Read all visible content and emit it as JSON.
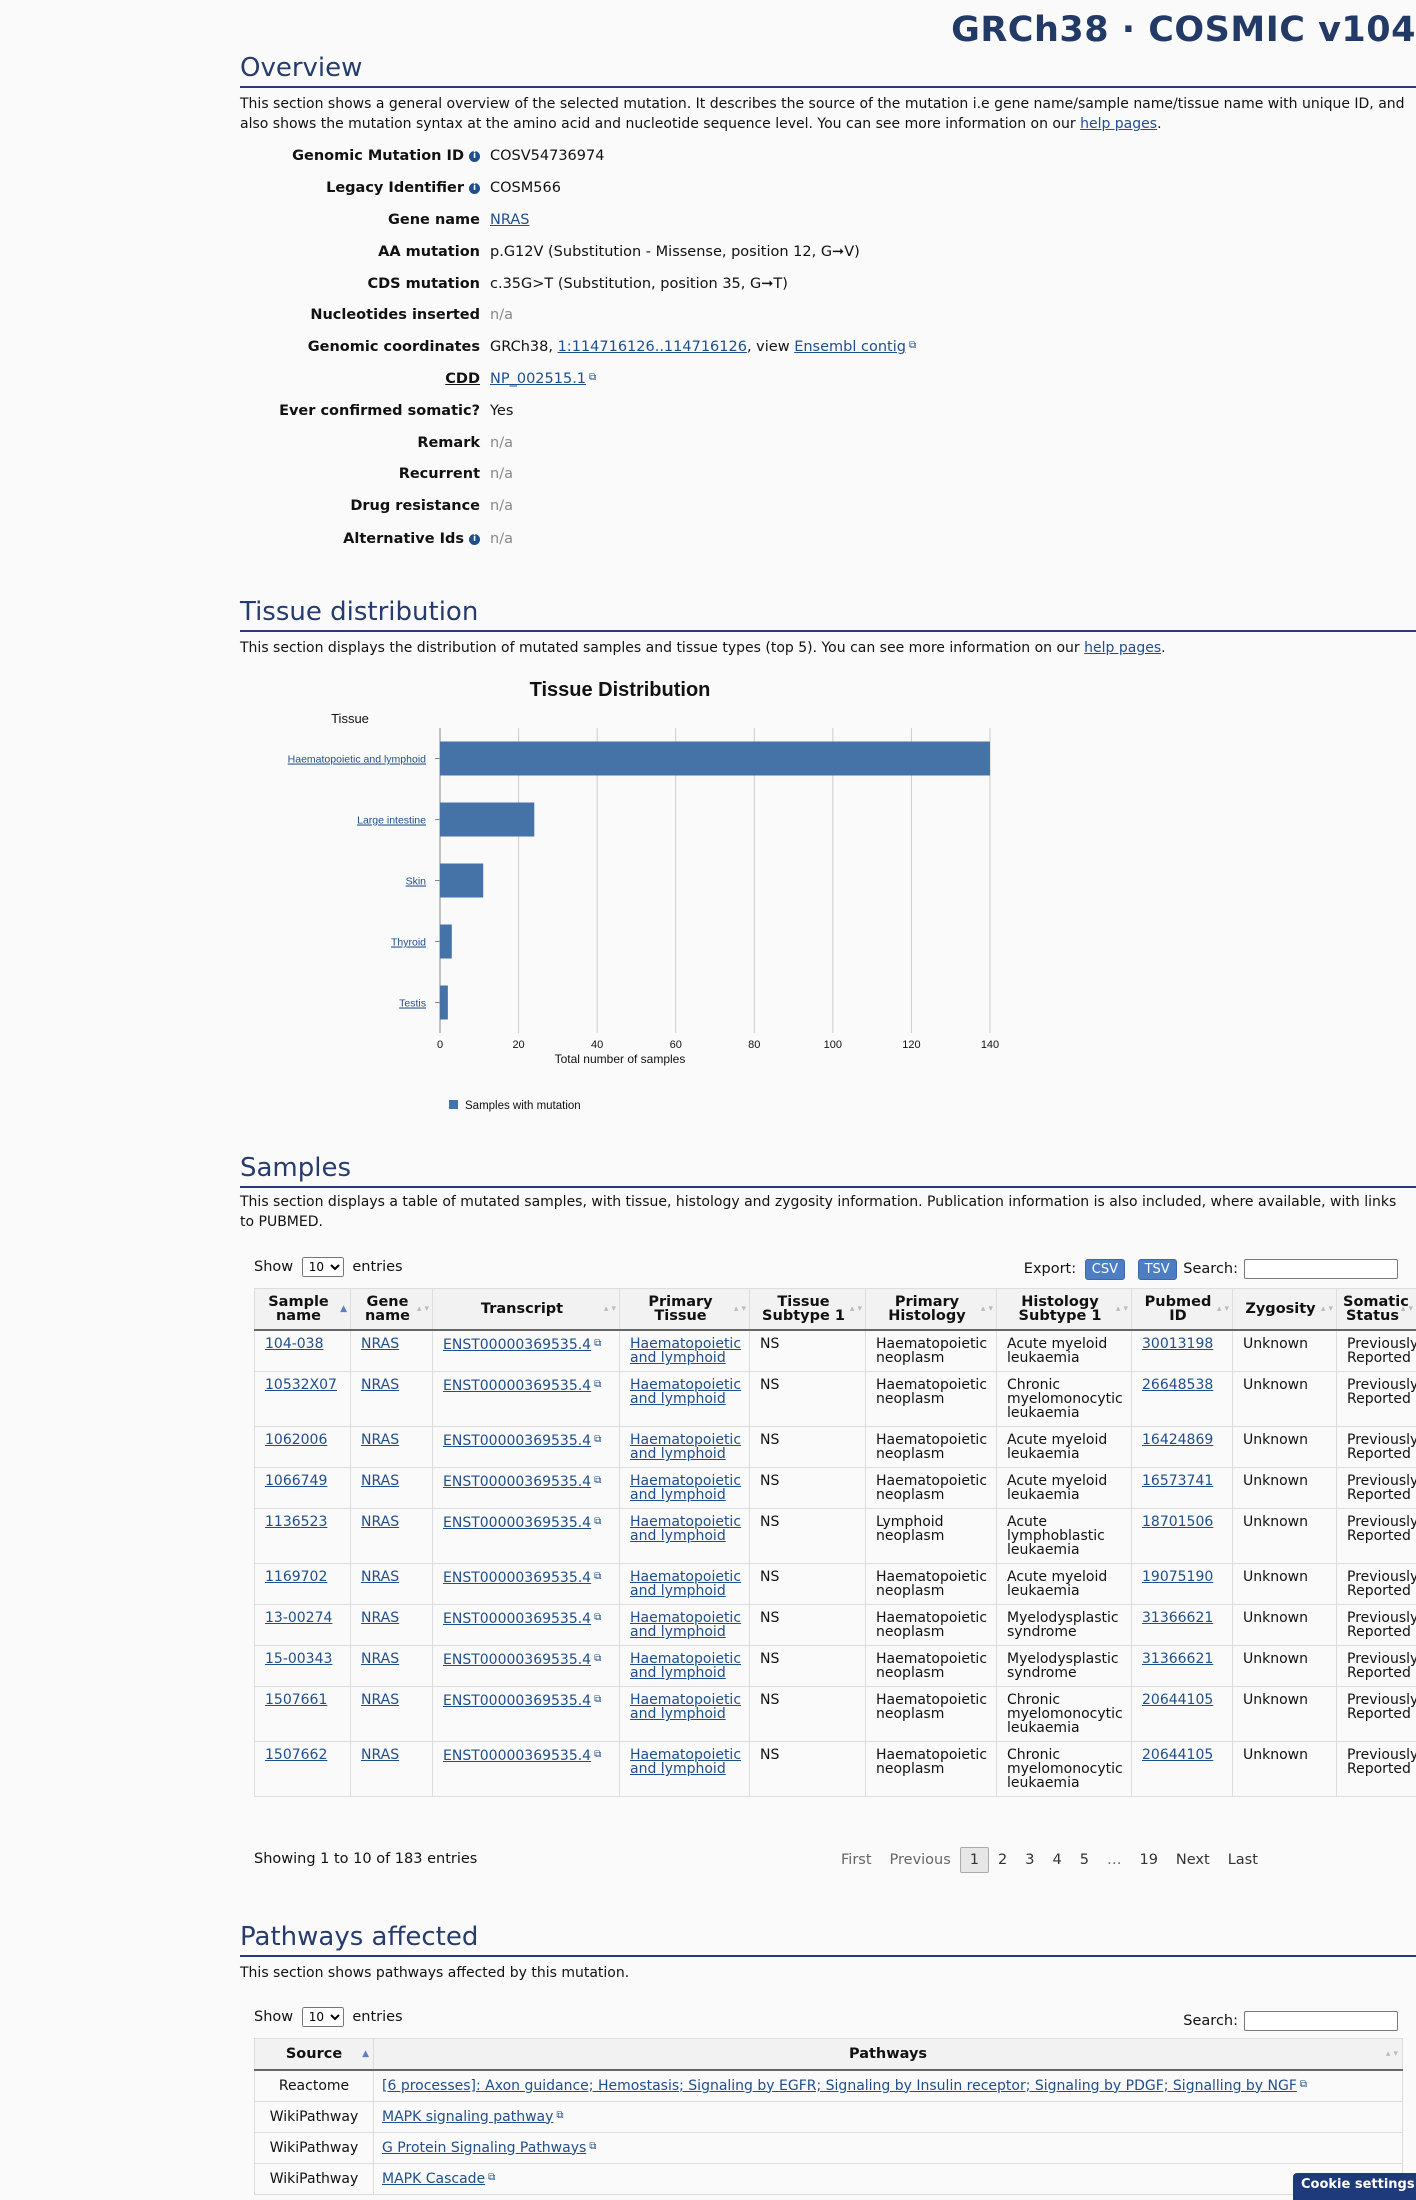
{
  "site": {
    "title": "GRCh38 · COSMIC v104"
  },
  "overview": {
    "heading": "Overview",
    "intro": "This section shows a general overview of the selected mutation. It describes the source of the mutation i.e gene name/sample name/tissue name with unique ID, and also shows the mutation syntax at the amino acid and nucleotide sequence level. You can see more information on our",
    "help_link": "help pages",
    "rows": [
      {
        "label": "Genomic Mutation ID",
        "value": "COSV54736974",
        "info": true
      },
      {
        "label": "Legacy Identifier",
        "value": "COSM566",
        "info": true
      },
      {
        "label": "Gene name",
        "value": "NRAS",
        "link": true
      },
      {
        "label": "AA mutation",
        "value": "p.G12V (Substitution - Missense, position 12, G➞V)"
      },
      {
        "label": "CDS mutation",
        "value": "c.35G>T (Substitution, position 35, G➞T)"
      },
      {
        "label": "Nucleotides inserted",
        "value": "n/a",
        "na": true
      },
      {
        "label": "Genomic coordinates",
        "prefix": "GRCh38, ",
        "coord_link": "1:114716126..114716126",
        "mid": ", view ",
        "ensembl_link": "Ensembl contig"
      },
      {
        "label": "CDD",
        "value": "NP_002515.1",
        "link": true,
        "ext": true
      },
      {
        "label": "Ever confirmed somatic?",
        "value": "Yes"
      },
      {
        "label": "Remark",
        "value": "n/a",
        "na": true
      },
      {
        "label": "Recurrent",
        "value": "n/a",
        "na": true
      },
      {
        "label": "Drug resistance",
        "value": "n/a",
        "na": true
      },
      {
        "label": "Alternative Ids",
        "value": "n/a",
        "na": true,
        "info": true
      }
    ]
  },
  "tissue": {
    "heading": "Tissue distribution",
    "intro": "This section displays the distribution of mutated samples and tissue types (top 5). You can see more information on our",
    "help_link": "help pages"
  },
  "chart_data": {
    "type": "bar",
    "orientation": "horizontal",
    "title": "Tissue Distribution",
    "ylabel": "Tissue",
    "xlabel": "Total number of samples",
    "categories": [
      "Haematopoietic and lymphoid",
      "Large intestine",
      "Skin",
      "Thyroid",
      "Testis"
    ],
    "values": [
      140,
      24,
      11,
      3,
      2
    ],
    "xlim": [
      0,
      140
    ],
    "xticks": [
      0,
      20,
      40,
      60,
      80,
      100,
      120,
      140
    ],
    "grid": true,
    "legend": {
      "position": "bottom-left",
      "entries": [
        "Samples with mutation"
      ]
    },
    "color": "#4572a7"
  },
  "samples": {
    "heading": "Samples",
    "intro": "This section displays a table of mutated samples, with tissue, histology and zygosity information. Publication information is also included, where available, with links to PUBMED.",
    "show_label": "Show",
    "entries_label": "entries",
    "page_size": "10",
    "export_label": "Export:",
    "csv": "CSV",
    "tsv": "TSV",
    "search_label": "Search:",
    "columns": [
      "Sample name",
      "Gene name",
      "Transcript",
      "Primary Tissue",
      "Tissue Subtype 1",
      "Primary Histology",
      "Histology Subtype 1",
      "Pubmed ID",
      "Zygosity",
      "Somatic Status"
    ],
    "rows": [
      [
        "104-038",
        "NRAS",
        "ENST00000369535.4",
        "Haematopoietic and lymphoid",
        "NS",
        "Haematopoietic neoplasm",
        "Acute myeloid leukaemia",
        "30013198",
        "Unknown",
        "Previously Reported"
      ],
      [
        "10532X07",
        "NRAS",
        "ENST00000369535.4",
        "Haematopoietic and lymphoid",
        "NS",
        "Haematopoietic neoplasm",
        "Chronic myelomonocytic leukaemia",
        "26648538",
        "Unknown",
        "Previously Reported"
      ],
      [
        "1062006",
        "NRAS",
        "ENST00000369535.4",
        "Haematopoietic and lymphoid",
        "NS",
        "Haematopoietic neoplasm",
        "Acute myeloid leukaemia",
        "16424869",
        "Unknown",
        "Previously Reported"
      ],
      [
        "1066749",
        "NRAS",
        "ENST00000369535.4",
        "Haematopoietic and lymphoid",
        "NS",
        "Haematopoietic neoplasm",
        "Acute myeloid leukaemia",
        "16573741",
        "Unknown",
        "Previously Reported"
      ],
      [
        "1136523",
        "NRAS",
        "ENST00000369535.4",
        "Haematopoietic and lymphoid",
        "NS",
        "Lymphoid neoplasm",
        "Acute lymphoblastic leukaemia",
        "18701506",
        "Unknown",
        "Previously Reported"
      ],
      [
        "1169702",
        "NRAS",
        "ENST00000369535.4",
        "Haematopoietic and lymphoid",
        "NS",
        "Haematopoietic neoplasm",
        "Acute myeloid leukaemia",
        "19075190",
        "Unknown",
        "Previously Reported"
      ],
      [
        "13-00274",
        "NRAS",
        "ENST00000369535.4",
        "Haematopoietic and lymphoid",
        "NS",
        "Haematopoietic neoplasm",
        "Myelodysplastic syndrome",
        "31366621",
        "Unknown",
        "Previously Reported"
      ],
      [
        "15-00343",
        "NRAS",
        "ENST00000369535.4",
        "Haematopoietic and lymphoid",
        "NS",
        "Haematopoietic neoplasm",
        "Myelodysplastic syndrome",
        "31366621",
        "Unknown",
        "Previously Reported"
      ],
      [
        "1507661",
        "NRAS",
        "ENST00000369535.4",
        "Haematopoietic and lymphoid",
        "NS",
        "Haematopoietic neoplasm",
        "Chronic myelomonocytic leukaemia",
        "20644105",
        "Unknown",
        "Previously Reported"
      ],
      [
        "1507662",
        "NRAS",
        "ENST00000369535.4",
        "Haematopoietic and lymphoid",
        "NS",
        "Haematopoietic neoplasm",
        "Chronic myelomonocytic leukaemia",
        "20644105",
        "Unknown",
        "Previously Reported"
      ]
    ],
    "info": "Showing 1 to 10 of 183 entries",
    "pager": {
      "first": "First",
      "previous": "Previous",
      "pages": [
        "1",
        "2",
        "3",
        "4",
        "5",
        "…",
        "19"
      ],
      "next": "Next",
      "last": "Last"
    }
  },
  "pathways": {
    "heading": "Pathways affected",
    "intro": "This section shows pathways affected by this mutation.",
    "show_label": "Show",
    "entries_label": "entries",
    "page_size": "10",
    "search_label": "Search:",
    "columns": [
      "Source",
      "Pathways"
    ],
    "rows": [
      [
        "Reactome",
        "[6 processes]: Axon guidance; Hemostasis; Signaling by EGFR; Signaling by Insulin receptor; Signaling by PDGF; Signalling by NGF"
      ],
      [
        "WikiPathway",
        "MAPK signaling pathway"
      ],
      [
        "WikiPathway",
        "G Protein Signaling Pathways"
      ],
      [
        "WikiPathway",
        "MAPK Cascade"
      ]
    ]
  },
  "cookie": {
    "label": "Cookie settings"
  }
}
